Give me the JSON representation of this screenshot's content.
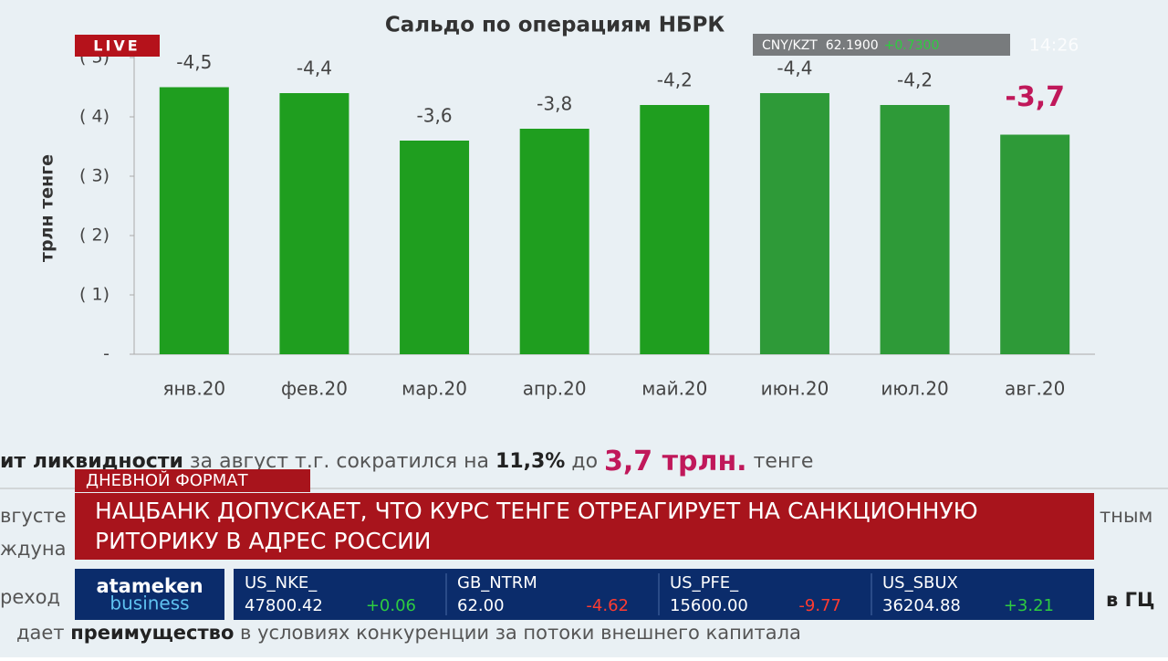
{
  "chart_data": {
    "type": "bar",
    "title": "Сальдо по операциям НБРК",
    "y_label": "трлн тенге",
    "categories": [
      "янв.20",
      "фев.20",
      "мар.20",
      "апр.20",
      "май.20",
      "июн.20",
      "июл.20",
      "авг.20"
    ],
    "values": [
      -4.5,
      -4.4,
      -3.6,
      -3.8,
      -4.2,
      -4.4,
      -4.2,
      -3.7
    ],
    "value_labels": [
      "-4,5",
      "-4,4",
      "-3,6",
      "-3,8",
      "-4,2",
      "-4,4",
      "-4,2",
      "-3,7"
    ],
    "colors": [
      "#1f9e1f",
      "#1f9e1f",
      "#1f9e1f",
      "#1f9e1f",
      "#1f9e1f",
      "#2e9a38",
      "#2e9a38",
      "#2e9a38"
    ],
    "ylim": [
      0,
      -5
    ],
    "yticks": [
      {
        "value": 0,
        "label": "-"
      },
      {
        "value": -1,
        "label": "( 1)"
      },
      {
        "value": -2,
        "label": "( 2)"
      },
      {
        "value": -3,
        "label": "( 3)"
      },
      {
        "value": -4,
        "label": "( 4)"
      },
      {
        "value": -5,
        "label": "( 5)"
      }
    ]
  },
  "caption": [
    "ит ликвидности",
    " за август т.г. сократился на ",
    "11,3%",
    " до ",
    "3,7 трлн.",
    " тенге"
  ],
  "background_text": [
    "вгусте",
    "ждуна",
    "реход",
    "дает ",
    "преимущество",
    " в условиях конкуренции за потоки внешнего капитала",
    "тным",
    "в ГЦ"
  ],
  "live": "LIVE",
  "rate": {
    "pair": "CNY/KZT  62.1900",
    "change": "+0.7300"
  },
  "time": "14:26",
  "program": "ДНЕВНОЙ ФОРМАТ",
  "headline": [
    "НАЦБАНК ДОПУСКАЕТ, ЧТО КУРС ТЕНГЕ ОТРЕАГИРУЕТ НА САНКЦИОННУЮ",
    "РИТОРИКУ В АДРЕС РОССИИ"
  ],
  "logo": [
    "atameken",
    "business"
  ],
  "stocks": [
    {
      "name": "US_NKE_",
      "price": "47800.42",
      "change": "+0.06"
    },
    {
      "name": "GB_NTRM",
      "price": "62.00",
      "change": "-4.62"
    },
    {
      "name": "US_PFE_",
      "price": "15600.00",
      "change": "-9.77"
    },
    {
      "name": "US_SBUX",
      "price": "36204.88",
      "change": "+3.21"
    }
  ]
}
